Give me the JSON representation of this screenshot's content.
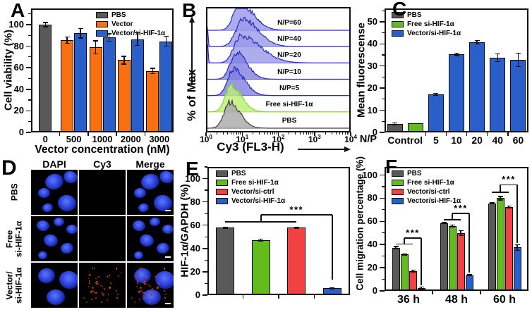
{
  "figure": {
    "background": "#ffffff"
  },
  "panels": {
    "A": {
      "label": "A"
    },
    "B": {
      "label": "B"
    },
    "C": {
      "label": "C"
    },
    "D": {
      "label": "D",
      "column_headers": [
        "DAPI",
        "Cy3",
        "Merge"
      ],
      "rows": [
        {
          "label_lines": [
            "PBS"
          ],
          "cells": [
            "nuclei",
            "empty",
            "nuclei"
          ]
        },
        {
          "label_lines": [
            "Free",
            "si-HIF-1α"
          ],
          "cells": [
            "nuclei",
            "empty",
            "nuclei"
          ]
        },
        {
          "label_lines": [
            "Vector/",
            "si-HIF-1α"
          ],
          "cells": [
            "nuclei",
            "red-dots",
            "nuclei-red-dots"
          ]
        }
      ],
      "nucleus_color": "#2b3fd8",
      "dot_color": "#e23914",
      "scale_bar": true
    },
    "E": {
      "label": "E"
    },
    "F": {
      "label": "F"
    }
  },
  "chart_data": [
    {
      "panel": "A",
      "type": "bar",
      "xlabel": "Vector concentration (nM)",
      "ylabel": "Cell viability (%)",
      "ylim": [
        0,
        115
      ],
      "yticks": [
        0,
        20,
        40,
        60,
        80,
        100
      ],
      "categories": [
        "0",
        "500",
        "1000",
        "2000",
        "3000"
      ],
      "series": [
        {
          "name": "PBS",
          "color": "#595959",
          "values": [
            100,
            null,
            null,
            null,
            null
          ],
          "errors": [
            2,
            null,
            null,
            null,
            null
          ]
        },
        {
          "name": "Vector",
          "color": "#F8700F",
          "values": [
            null,
            85.5,
            79,
            67,
            57
          ],
          "errors": [
            null,
            3,
            6,
            3.5,
            2.5
          ]
        },
        {
          "name": "Vector/si-HIF-1α",
          "color": "#2A5FC9",
          "values": [
            null,
            92,
            88,
            86.5,
            84.5
          ],
          "errors": [
            null,
            4.5,
            3.5,
            6,
            4.5
          ]
        }
      ],
      "legend": [
        "PBS",
        "Vector",
        "Vector/si-HIF-1α"
      ],
      "legend_position": "top-right"
    },
    {
      "panel": "B",
      "type": "ridgeline-histogram",
      "xlabel": "Cy3 (FL3-H)",
      "ylabel": "% of Max",
      "x_scale": "log10",
      "x_tick_exponents": [
        0,
        1,
        2,
        3,
        4
      ],
      "series": [
        {
          "name": "N/P=60",
          "fill": "#9898E8",
          "stroke": "#2A2AC0",
          "peak_log": 0.93,
          "sigma_left": 0.17,
          "sigma_right": 0.38,
          "left_spike": false
        },
        {
          "name": "N/P=40",
          "fill": "#9898E8",
          "stroke": "#2A2AC0",
          "peak_log": 1.03,
          "sigma_left": 0.2,
          "sigma_right": 0.42,
          "left_spike": true
        },
        {
          "name": "N/P=20",
          "fill": "#9898E8",
          "stroke": "#2A2AC0",
          "peak_log": 0.95,
          "sigma_left": 0.18,
          "sigma_right": 0.55,
          "left_spike": true
        },
        {
          "name": "N/P=10",
          "fill": "#8080E0",
          "stroke": "#2525BE",
          "peak_log": 0.83,
          "sigma_left": 0.16,
          "sigma_right": 0.3,
          "left_spike": false
        },
        {
          "name": "N/P=5",
          "fill": "#8080E0",
          "stroke": "#2525BE",
          "peak_log": 0.76,
          "sigma_left": 0.16,
          "sigma_right": 0.3,
          "left_spike": false
        },
        {
          "name": "Free si-HIF-1α",
          "fill": "#BCEE74",
          "stroke": "#86D52F",
          "peak_log": 0.7,
          "sigma_left": 0.16,
          "sigma_right": 0.28,
          "left_spike": false
        },
        {
          "name": "PBS",
          "fill": "#A8A8A8",
          "stroke": "#3D3D3D",
          "peak_log": 0.66,
          "sigma_left": 0.16,
          "sigma_right": 0.28,
          "left_spike": false
        }
      ]
    },
    {
      "panel": "C",
      "type": "bar",
      "xlabel": "N/P",
      "ylabel": "Mean fluorescense",
      "ylim": [
        0,
        56
      ],
      "yticks": [
        0,
        10,
        20,
        30,
        40,
        50
      ],
      "categories": [
        "Control",
        "5",
        "10",
        "20",
        "40",
        "60"
      ],
      "series": [
        {
          "name": "PBS",
          "color": "#595959",
          "values": [
            3.8,
            null,
            null,
            null,
            null,
            null
          ],
          "errors": [
            0.4,
            null,
            null,
            null,
            null,
            null
          ]
        },
        {
          "name": "Free si-HIF-1α",
          "color": "#64BB1E",
          "values": [
            4,
            null,
            null,
            null,
            null,
            null
          ],
          "errors": [
            null,
            null,
            null,
            null,
            null,
            null
          ]
        },
        {
          "name": "Vector/si-HIF-1α",
          "color": "#2A5FC9",
          "values": [
            null,
            17.3,
            35.2,
            40.7,
            33.7,
            32.7
          ],
          "errors": [
            null,
            0.4,
            0.5,
            0.8,
            1.8,
            3
          ]
        }
      ],
      "legend": [
        "PBS",
        "Free si-HIF-1α",
        "Vector/si-HIF-1α"
      ],
      "legend_position": "top-left"
    },
    {
      "panel": "E",
      "type": "bar",
      "xlabel": "",
      "ylabel": "HIF-1α/GAPDH (%)",
      "ylim": [
        0,
        110
      ],
      "yticks": [
        0,
        20,
        40,
        60,
        80,
        100
      ],
      "categories": [
        ""
      ],
      "series": [
        {
          "name": "PBS",
          "color": "#595959",
          "values": [
            58
          ],
          "errors": [
            0.5
          ]
        },
        {
          "name": "Free si-HIF-1α",
          "color": "#64BB1E",
          "values": [
            47.3
          ],
          "errors": [
            0.8
          ]
        },
        {
          "name": "Vector/si-ctrl",
          "color": "#F14143",
          "values": [
            58
          ],
          "errors": [
            0.5
          ]
        },
        {
          "name": "Vector/si-HIF-1α",
          "color": "#2A5FC9",
          "values": [
            6
          ],
          "errors": [
            0.5
          ]
        }
      ],
      "legend": [
        "PBS",
        "Free si-HIF-1α",
        "Vector/si-ctrl",
        "Vector/si-HIF-1α"
      ],
      "legend_position": "top-left",
      "significance": [
        {
          "cat": 0,
          "y1": 63,
          "y2": 69,
          "drop_y": 13,
          "label": "***"
        }
      ]
    },
    {
      "panel": "F",
      "type": "bar",
      "xlabel": "",
      "ylabel": "Cell migration percentage (%)",
      "ylim": [
        0,
        107
      ],
      "yticks": [
        0,
        20,
        40,
        60,
        80,
        100
      ],
      "categories": [
        "36 h",
        "48 h",
        "60 h"
      ],
      "series": [
        {
          "name": "PBS",
          "color": "#595959",
          "values": [
            37.3,
            58.5,
            75.5
          ],
          "errors": [
            1,
            0.5,
            0.5
          ]
        },
        {
          "name": "Free si-HIF-1α",
          "color": "#64BB1E",
          "values": [
            31.5,
            56,
            80
          ],
          "errors": [
            0.5,
            0.8,
            1.5
          ]
        },
        {
          "name": "Vector/si-ctrl",
          "color": "#F14143",
          "values": [
            17,
            50,
            72.5
          ],
          "errors": [
            1,
            2,
            0.8
          ]
        },
        {
          "name": "Vector/si-HIF-1α",
          "color": "#2A5FC9",
          "values": [
            2.5,
            13.5,
            37.5
          ],
          "errors": [
            0.7,
            0.5,
            2.5
          ]
        }
      ],
      "legend": [
        "PBS",
        "Free si-HIF-1α",
        "Vector/si-ctrl",
        "Vector/si-HIF-1α"
      ],
      "legend_position": "top-left",
      "significance": [
        {
          "cat": 0,
          "y1": 40.5,
          "y2": 45.5,
          "drop_y": 4.8,
          "label": "***"
        },
        {
          "cat": 1,
          "y1": 61.5,
          "y2": 67,
          "drop_y": 15.5,
          "label": "***"
        },
        {
          "cat": 2,
          "y1": 85,
          "y2": 91.5,
          "drop_y": 41.5,
          "label": "***"
        }
      ]
    }
  ]
}
